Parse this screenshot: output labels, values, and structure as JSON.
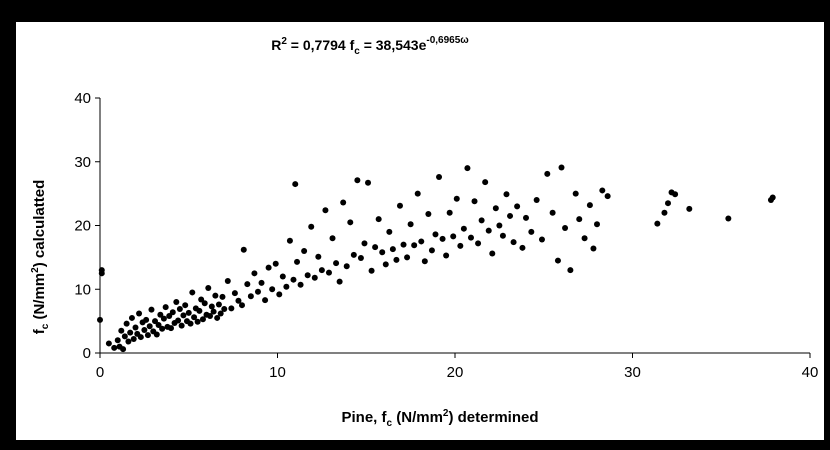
{
  "chart_data": {
    "type": "scatter",
    "title": {
      "r_label": "R",
      "r_sup": "2",
      "r_value": " = 0,7794  f",
      "f_sub": "c",
      "f_eq": " = 38,543e",
      "f_exp": "-0,6965ω"
    },
    "xlabel": {
      "pre": "Pine, f",
      "sub": "c",
      "mid": " (N/mm",
      "sup": "2",
      "post": ") determined"
    },
    "ylabel": {
      "pre": "f",
      "sub": "c",
      "mid": " (N/mm",
      "sup": "2",
      "post": ") calculatted"
    },
    "xlim": [
      0,
      40
    ],
    "ylim": [
      0,
      40
    ],
    "xticks": [
      "0",
      "10",
      "20",
      "30",
      "40"
    ],
    "yticks": [
      "0",
      "10",
      "20",
      "30",
      "40"
    ],
    "grid": false,
    "legend": "none",
    "marker_color": "#000000",
    "points": [
      [
        0.1,
        12.5
      ],
      [
        0.1,
        13.0
      ],
      [
        0.0,
        5.2
      ],
      [
        0.5,
        1.5
      ],
      [
        0.8,
        0.8
      ],
      [
        1.0,
        2.0
      ],
      [
        1.1,
        1.0
      ],
      [
        1.2,
        3.5
      ],
      [
        1.3,
        0.6
      ],
      [
        1.4,
        2.6
      ],
      [
        1.5,
        4.6
      ],
      [
        1.6,
        1.8
      ],
      [
        1.7,
        3.2
      ],
      [
        1.8,
        5.5
      ],
      [
        1.9,
        2.2
      ],
      [
        2.0,
        4.0
      ],
      [
        2.1,
        3.0
      ],
      [
        2.2,
        6.2
      ],
      [
        2.3,
        2.5
      ],
      [
        2.4,
        4.8
      ],
      [
        2.5,
        3.6
      ],
      [
        2.6,
        5.2
      ],
      [
        2.7,
        2.8
      ],
      [
        2.8,
        4.2
      ],
      [
        2.9,
        6.8
      ],
      [
        3.0,
        3.4
      ],
      [
        3.1,
        5.0
      ],
      [
        3.2,
        2.9
      ],
      [
        3.3,
        4.4
      ],
      [
        3.4,
        6.0
      ],
      [
        3.5,
        3.8
      ],
      [
        3.6,
        5.4
      ],
      [
        3.7,
        7.2
      ],
      [
        3.8,
        4.1
      ],
      [
        3.9,
        5.8
      ],
      [
        4.0,
        3.9
      ],
      [
        4.1,
        6.4
      ],
      [
        4.2,
        4.7
      ],
      [
        4.3,
        8.0
      ],
      [
        4.4,
        5.1
      ],
      [
        4.5,
        6.9
      ],
      [
        4.6,
        4.3
      ],
      [
        4.7,
        5.9
      ],
      [
        4.8,
        7.5
      ],
      [
        4.9,
        5.0
      ],
      [
        5.0,
        6.3
      ],
      [
        5.1,
        4.6
      ],
      [
        5.2,
        9.5
      ],
      [
        5.3,
        5.6
      ],
      [
        5.4,
        7.0
      ],
      [
        5.5,
        4.9
      ],
      [
        5.6,
        6.6
      ],
      [
        5.7,
        8.4
      ],
      [
        5.8,
        5.3
      ],
      [
        5.9,
        7.8
      ],
      [
        6.0,
        6.0
      ],
      [
        6.1,
        10.2
      ],
      [
        6.2,
        5.8
      ],
      [
        6.3,
        7.3
      ],
      [
        6.4,
        6.5
      ],
      [
        6.5,
        9.0
      ],
      [
        6.6,
        5.5
      ],
      [
        6.7,
        7.6
      ],
      [
        6.8,
        6.2
      ],
      [
        6.9,
        8.8
      ],
      [
        7.0,
        6.9
      ],
      [
        7.2,
        11.3
      ],
      [
        7.4,
        7.0
      ],
      [
        7.6,
        9.4
      ],
      [
        7.8,
        8.2
      ],
      [
        8.0,
        7.5
      ],
      [
        8.1,
        16.2
      ],
      [
        8.3,
        10.8
      ],
      [
        8.5,
        8.9
      ],
      [
        8.7,
        12.5
      ],
      [
        8.9,
        9.6
      ],
      [
        9.1,
        11.0
      ],
      [
        9.3,
        8.3
      ],
      [
        9.5,
        13.4
      ],
      [
        9.7,
        10.0
      ],
      [
        9.9,
        14.0
      ],
      [
        10.1,
        9.2
      ],
      [
        10.3,
        12.0
      ],
      [
        10.5,
        10.4
      ],
      [
        10.7,
        17.6
      ],
      [
        10.9,
        11.5
      ],
      [
        11.0,
        26.5
      ],
      [
        11.1,
        14.3
      ],
      [
        11.3,
        10.7
      ],
      [
        11.5,
        16.0
      ],
      [
        11.7,
        12.2
      ],
      [
        11.9,
        19.8
      ],
      [
        12.1,
        11.8
      ],
      [
        12.3,
        15.1
      ],
      [
        12.5,
        13.0
      ],
      [
        12.7,
        22.4
      ],
      [
        12.9,
        12.6
      ],
      [
        13.1,
        18.0
      ],
      [
        13.3,
        14.1
      ],
      [
        13.5,
        11.2
      ],
      [
        13.7,
        23.6
      ],
      [
        13.9,
        13.6
      ],
      [
        14.1,
        20.5
      ],
      [
        14.3,
        15.4
      ],
      [
        14.5,
        27.1
      ],
      [
        14.7,
        14.9
      ],
      [
        14.9,
        17.2
      ],
      [
        15.1,
        26.7
      ],
      [
        15.3,
        12.9
      ],
      [
        15.5,
        16.6
      ],
      [
        15.7,
        21.0
      ],
      [
        15.9,
        15.8
      ],
      [
        16.1,
        13.9
      ],
      [
        16.3,
        19.0
      ],
      [
        16.5,
        16.3
      ],
      [
        16.7,
        14.6
      ],
      [
        16.9,
        23.1
      ],
      [
        17.1,
        17.0
      ],
      [
        17.3,
        15.0
      ],
      [
        17.5,
        20.2
      ],
      [
        17.7,
        16.9
      ],
      [
        17.9,
        25.0
      ],
      [
        18.1,
        17.5
      ],
      [
        18.3,
        14.4
      ],
      [
        18.5,
        21.8
      ],
      [
        18.7,
        16.1
      ],
      [
        18.9,
        18.6
      ],
      [
        19.1,
        27.6
      ],
      [
        19.3,
        17.9
      ],
      [
        19.5,
        15.3
      ],
      [
        19.7,
        22.0
      ],
      [
        19.9,
        18.3
      ],
      [
        20.1,
        24.2
      ],
      [
        20.3,
        16.8
      ],
      [
        20.5,
        19.5
      ],
      [
        20.7,
        29.0
      ],
      [
        20.9,
        18.1
      ],
      [
        21.1,
        23.8
      ],
      [
        21.3,
        17.2
      ],
      [
        21.5,
        20.8
      ],
      [
        21.7,
        26.8
      ],
      [
        21.9,
        19.2
      ],
      [
        22.1,
        15.6
      ],
      [
        22.3,
        22.7
      ],
      [
        22.5,
        20.0
      ],
      [
        22.7,
        18.4
      ],
      [
        22.9,
        24.9
      ],
      [
        23.1,
        21.5
      ],
      [
        23.3,
        17.4
      ],
      [
        23.5,
        23.0
      ],
      [
        23.8,
        16.5
      ],
      [
        24.0,
        21.2
      ],
      [
        24.3,
        19.0
      ],
      [
        24.6,
        24.0
      ],
      [
        24.9,
        17.8
      ],
      [
        25.2,
        28.1
      ],
      [
        25.5,
        22.0
      ],
      [
        25.8,
        14.5
      ],
      [
        26.0,
        29.1
      ],
      [
        26.2,
        19.6
      ],
      [
        26.5,
        13.0
      ],
      [
        26.8,
        25.0
      ],
      [
        27.0,
        21.0
      ],
      [
        27.3,
        18.0
      ],
      [
        27.6,
        23.2
      ],
      [
        27.8,
        16.4
      ],
      [
        28.0,
        20.2
      ],
      [
        28.3,
        25.5
      ],
      [
        28.6,
        24.6
      ],
      [
        31.4,
        20.3
      ],
      [
        31.8,
        22.0
      ],
      [
        32.0,
        23.5
      ],
      [
        32.2,
        25.2
      ],
      [
        32.4,
        24.9
      ],
      [
        33.2,
        22.6
      ],
      [
        35.4,
        21.1
      ],
      [
        37.8,
        24.0
      ],
      [
        37.9,
        24.4
      ]
    ]
  }
}
